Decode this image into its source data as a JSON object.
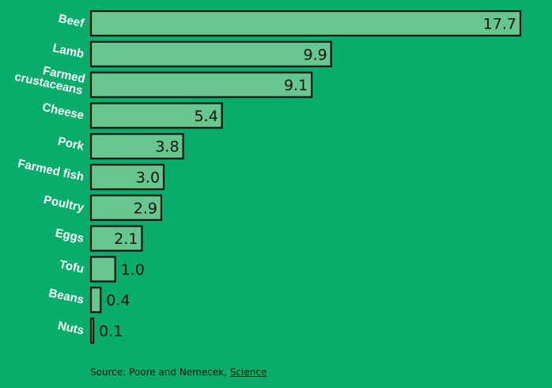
{
  "chart_data": {
    "type": "bar",
    "orientation": "horizontal",
    "categories": [
      "Beef",
      "Lamb",
      "Farmed crustaceans",
      "Cheese",
      "Pork",
      "Farmed fish",
      "Poultry",
      "Eggs",
      "Tofu",
      "Beans",
      "Nuts"
    ],
    "category_lines": [
      [
        "Beef"
      ],
      [
        "Lamb"
      ],
      [
        "Farmed",
        "crustaceans"
      ],
      [
        "Cheese"
      ],
      [
        "Pork"
      ],
      [
        "Farmed fish"
      ],
      [
        "Poultry"
      ],
      [
        "Eggs"
      ],
      [
        "Tofu"
      ],
      [
        "Beans"
      ],
      [
        "Nuts"
      ]
    ],
    "values": [
      17.7,
      9.9,
      9.1,
      5.4,
      3.8,
      3.0,
      2.9,
      2.1,
      1.0,
      0.4,
      0.1
    ],
    "value_labels": [
      "17.7",
      "9.9",
      "9.1",
      "5.4",
      "3.8",
      "3.0",
      "2.9",
      "2.1",
      "1.0",
      "0.4",
      "0.1"
    ],
    "xlim": [
      0,
      17.7
    ],
    "grid": false,
    "legend": "none",
    "colors": {
      "background": "#08ad6c",
      "bar": "#66c68d",
      "outline": "#111111",
      "category_text": "#ffffff"
    }
  },
  "source": {
    "prefix": "Source: Poore and Nemecek, ",
    "link": "Science"
  }
}
